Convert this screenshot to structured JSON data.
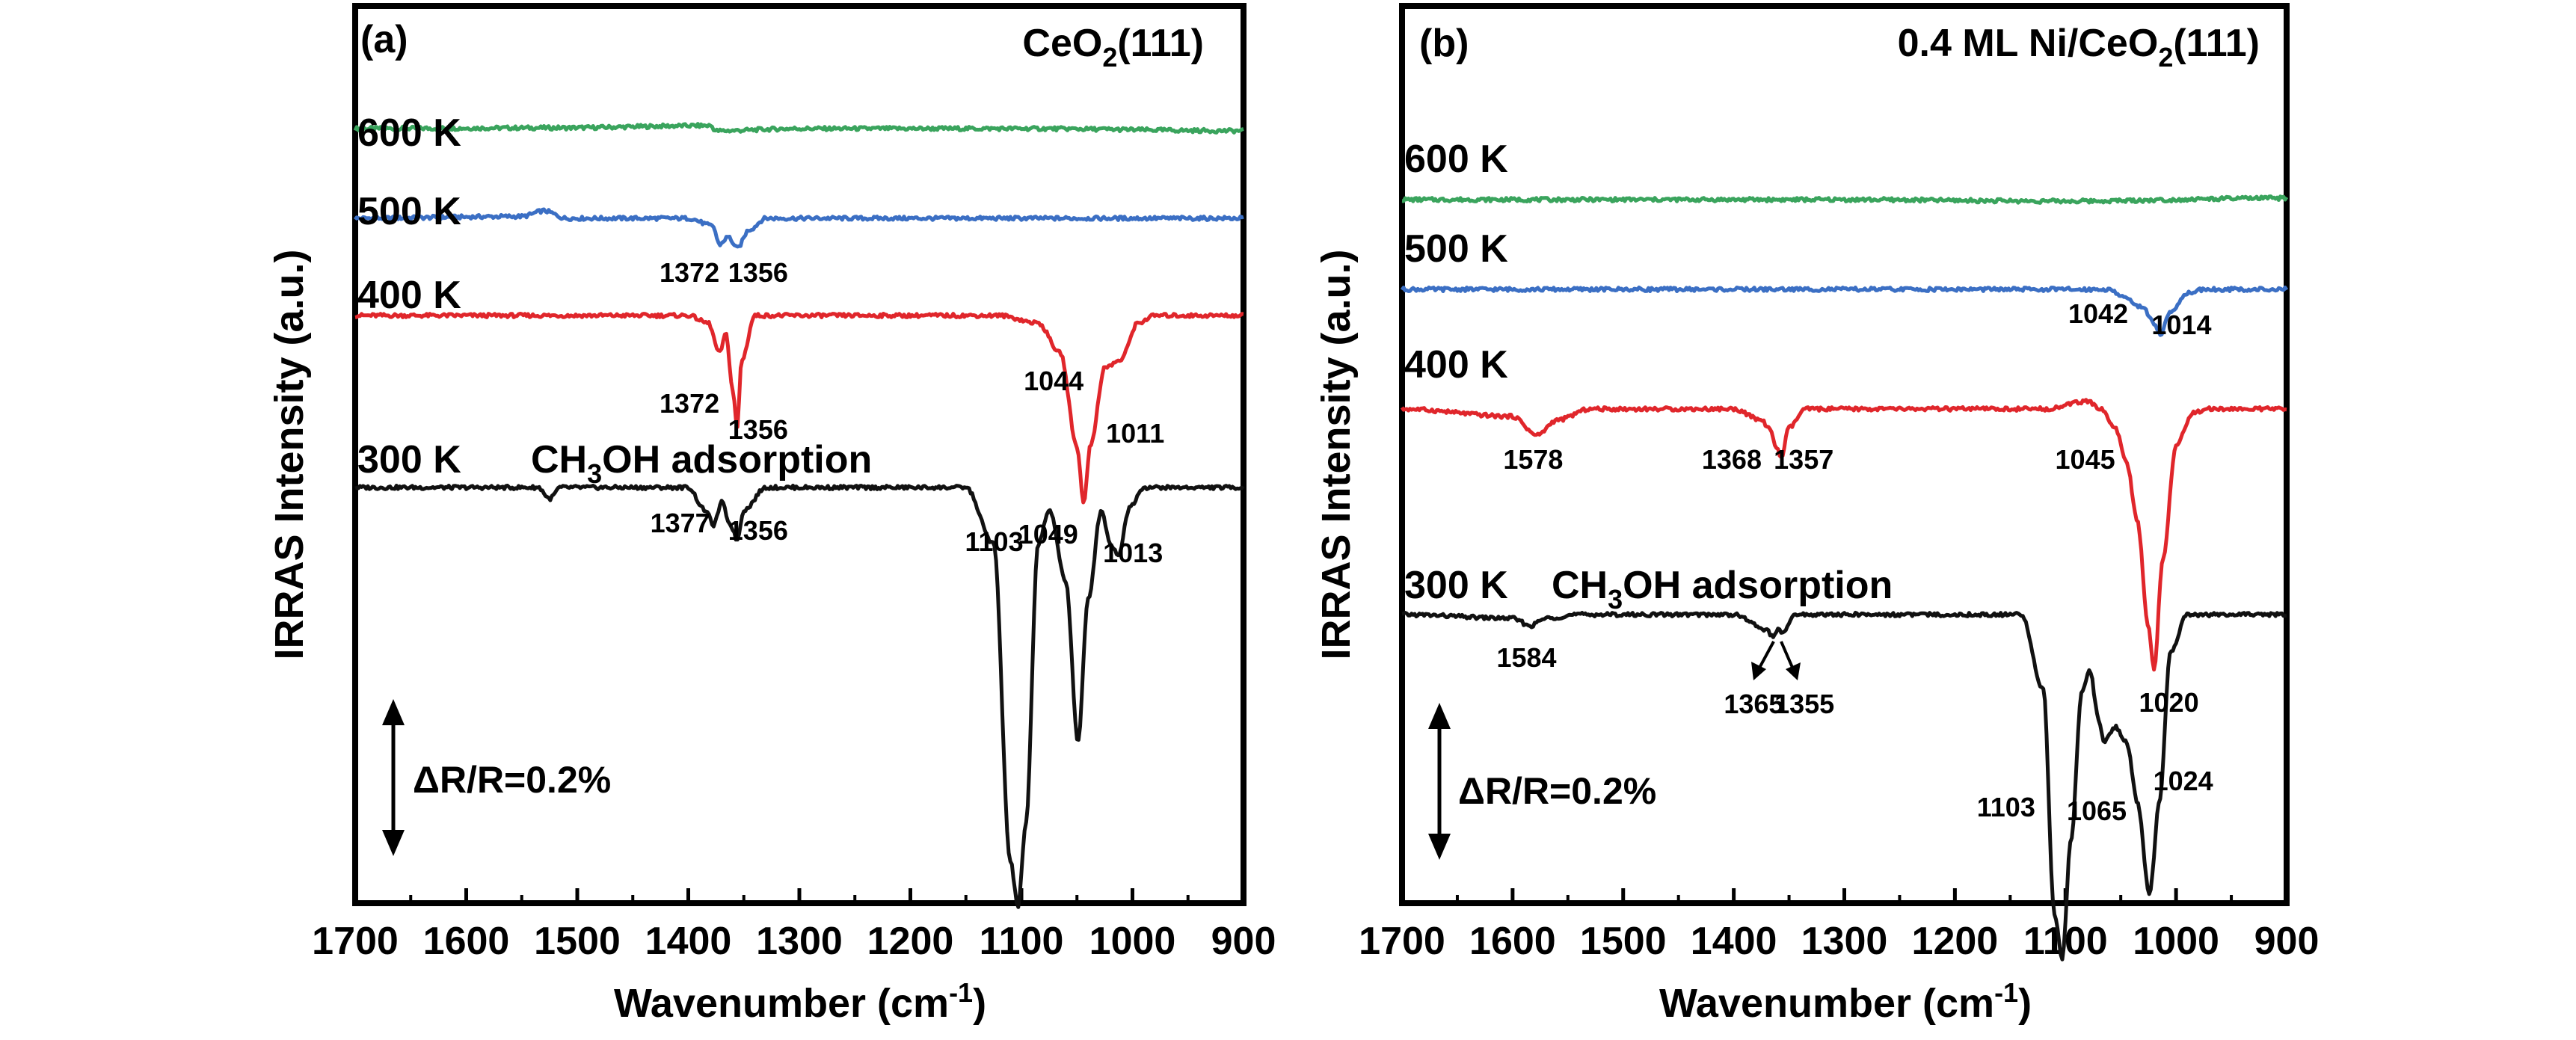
{
  "chart_data": [
    {
      "type": "line",
      "panel_label": "(a)",
      "title": "CeO2(111)",
      "title_parts": {
        "pre": "CeO",
        "sub": "2",
        "post": "(111)"
      },
      "xlabel": "Wavenumber (cm-1)",
      "xlabel_parts": {
        "pre": "Wavenumber (cm",
        "sup": "-1",
        "post": ")"
      },
      "ylabel": "IRRAS Intensity (a.u.)",
      "xlim": [
        1700,
        900
      ],
      "x_reversed": true,
      "xticks": [
        "1700",
        "1600",
        "1500",
        "1400",
        "1300",
        "1200",
        "1100",
        "1000",
        "900"
      ],
      "yticks": [],
      "scale_bar": "ΔR/R=0.2%",
      "scale_bar_value_percent": 0.2,
      "traces": [
        {
          "name": "600 K",
          "color": "#3aa45d",
          "offset": 0.96,
          "points": [
            [
              1700,
              0
            ],
            [
              1520,
              0.002
            ],
            [
              1380,
              0.008
            ],
            [
              1375,
              -0.006
            ],
            [
              1300,
              0
            ],
            [
              1100,
              0
            ],
            [
              900,
              -0.006
            ]
          ]
        },
        {
          "name": "500 K",
          "color": "#3b6fc4",
          "offset": 0.72,
          "points": [
            [
              1700,
              0
            ],
            [
              1550,
              0.005
            ],
            [
              1530,
              0.02
            ],
            [
              1510,
              0
            ],
            [
              1400,
              0
            ],
            [
              1378,
              -0.02
            ],
            [
              1372,
              -0.07
            ],
            [
              1364,
              -0.05
            ],
            [
              1356,
              -0.08
            ],
            [
              1345,
              -0.03
            ],
            [
              1330,
              0
            ],
            [
              1100,
              0
            ],
            [
              900,
              0
            ]
          ]
        },
        {
          "name": "400 K",
          "color": "#e0262b",
          "offset": 0.46,
          "points": [
            [
              1700,
              0
            ],
            [
              1400,
              0
            ],
            [
              1382,
              -0.02
            ],
            [
              1372,
              -0.1
            ],
            [
              1366,
              -0.05
            ],
            [
              1360,
              -0.2
            ],
            [
              1356,
              -0.3
            ],
            [
              1352,
              -0.12
            ],
            [
              1340,
              0
            ],
            [
              1120,
              0
            ],
            [
              1085,
              -0.02
            ],
            [
              1065,
              -0.1
            ],
            [
              1050,
              -0.35
            ],
            [
              1044,
              -0.5
            ],
            [
              1038,
              -0.35
            ],
            [
              1025,
              -0.14
            ],
            [
              1011,
              -0.12
            ],
            [
              995,
              -0.02
            ],
            [
              980,
              0
            ],
            [
              900,
              0
            ]
          ]
        },
        {
          "name": "300 K",
          "color": "#111111",
          "offset": 0,
          "points": [
            [
              1700,
              0
            ],
            [
              1535,
              0
            ],
            [
              1525,
              -0.03
            ],
            [
              1515,
              0
            ],
            [
              1400,
              0
            ],
            [
              1385,
              -0.06
            ],
            [
              1377,
              -0.1
            ],
            [
              1370,
              -0.04
            ],
            [
              1362,
              -0.1
            ],
            [
              1356,
              -0.14
            ],
            [
              1350,
              -0.06
            ],
            [
              1330,
              0
            ],
            [
              1150,
              0
            ],
            [
              1125,
              -0.15
            ],
            [
              1110,
              -1.0
            ],
            [
              1103,
              -1.12
            ],
            [
              1096,
              -0.9
            ],
            [
              1085,
              -0.15
            ],
            [
              1075,
              -0.06
            ],
            [
              1060,
              -0.25
            ],
            [
              1049,
              -0.68
            ],
            [
              1040,
              -0.3
            ],
            [
              1028,
              -0.06
            ],
            [
              1020,
              -0.15
            ],
            [
              1013,
              -0.18
            ],
            [
              1002,
              -0.05
            ],
            [
              990,
              0
            ],
            [
              900,
              0
            ]
          ]
        }
      ],
      "trace_label_300_extra": "CH3OH adsorption",
      "adsorption_parts": {
        "pre": "CH",
        "sub": "3",
        "post": "OH adsorption"
      },
      "peak_labels": [
        {
          "text": "1372",
          "x": 1372,
          "trace": "500 K"
        },
        {
          "text": "1356",
          "x": 1356,
          "trace": "500 K"
        },
        {
          "text": "1372",
          "x": 1372,
          "trace": "400 K"
        },
        {
          "text": "1356",
          "x": 1356,
          "trace": "400 K"
        },
        {
          "text": "1044",
          "x": 1044,
          "trace": "400 K"
        },
        {
          "text": "1011",
          "x": 1011,
          "trace": "400 K"
        },
        {
          "text": "1377",
          "x": 1377,
          "trace": "300 K"
        },
        {
          "text": "1356",
          "x": 1356,
          "trace": "300 K"
        },
        {
          "text": "1103",
          "x": 1103,
          "trace": "300 K"
        },
        {
          "text": "1049",
          "x": 1049,
          "trace": "300 K"
        },
        {
          "text": "1013",
          "x": 1013,
          "trace": "300 K"
        }
      ]
    },
    {
      "type": "line",
      "panel_label": "(b)",
      "title": "0.4 ML Ni/CeO2(111)",
      "title_parts": {
        "pre": "0.4 ML Ni/CeO",
        "sub": "2",
        "post": "(111)"
      },
      "xlabel": "Wavenumber (cm-1)",
      "xlabel_parts": {
        "pre": "Wavenumber (cm",
        "sup": "-1",
        "post": ")"
      },
      "ylabel": "IRRAS Intensity (a.u.)",
      "xlim": [
        1700,
        900
      ],
      "x_reversed": true,
      "xticks": [
        "1700",
        "1600",
        "1500",
        "1400",
        "1300",
        "1200",
        "1100",
        "1000",
        "900"
      ],
      "yticks": [],
      "scale_bar": "ΔR/R=0.2%",
      "scale_bar_value_percent": 0.2,
      "traces": [
        {
          "name": "600 K",
          "color": "#3aa45d",
          "offset": 1.11,
          "points": [
            [
              1700,
              0
            ],
            [
              1500,
              0
            ],
            [
              1300,
              0
            ],
            [
              1100,
              -0.004
            ],
            [
              900,
              0.004
            ]
          ]
        },
        {
          "name": "500 K",
          "color": "#3b6fc4",
          "offset": 0.87,
          "points": [
            [
              1700,
              0
            ],
            [
              1300,
              0
            ],
            [
              1060,
              0
            ],
            [
              1048,
              -0.02
            ],
            [
              1042,
              -0.03
            ],
            [
              1030,
              -0.05
            ],
            [
              1020,
              -0.09
            ],
            [
              1014,
              -0.12
            ],
            [
              1005,
              -0.06
            ],
            [
              990,
              -0.01
            ],
            [
              975,
              0
            ],
            [
              900,
              0
            ]
          ]
        },
        {
          "name": "400 K",
          "color": "#e0262b",
          "offset": 0.55,
          "points": [
            [
              1700,
              0
            ],
            [
              1600,
              -0.02
            ],
            [
              1578,
              -0.07
            ],
            [
              1560,
              -0.03
            ],
            [
              1530,
              0
            ],
            [
              1400,
              0
            ],
            [
              1375,
              -0.03
            ],
            [
              1368,
              -0.05
            ],
            [
              1362,
              -0.1
            ],
            [
              1357,
              -0.13
            ],
            [
              1350,
              -0.05
            ],
            [
              1335,
              0
            ],
            [
              1120,
              0
            ],
            [
              1080,
              0.02
            ],
            [
              1068,
              0
            ],
            [
              1055,
              -0.05
            ],
            [
              1045,
              -0.14
            ],
            [
              1035,
              -0.3
            ],
            [
              1025,
              -0.58
            ],
            [
              1020,
              -0.7
            ],
            [
              1012,
              -0.4
            ],
            [
              1000,
              -0.1
            ],
            [
              985,
              -0.01
            ],
            [
              970,
              0
            ],
            [
              900,
              0
            ]
          ]
        },
        {
          "name": "300 K",
          "color": "#111111",
          "offset": 0,
          "points": [
            [
              1700,
              0
            ],
            [
              1600,
              -0.01
            ],
            [
              1584,
              -0.03
            ],
            [
              1570,
              -0.01
            ],
            [
              1540,
              0
            ],
            [
              1400,
              0
            ],
            [
              1370,
              -0.04
            ],
            [
              1365,
              -0.06
            ],
            [
              1360,
              -0.04
            ],
            [
              1355,
              -0.05
            ],
            [
              1345,
              0
            ],
            [
              1140,
              0
            ],
            [
              1120,
              -0.2
            ],
            [
              1110,
              -0.8
            ],
            [
              1103,
              -0.92
            ],
            [
              1095,
              -0.6
            ],
            [
              1085,
              -0.2
            ],
            [
              1078,
              -0.15
            ],
            [
              1070,
              -0.28
            ],
            [
              1065,
              -0.34
            ],
            [
              1055,
              -0.3
            ],
            [
              1045,
              -0.34
            ],
            [
              1035,
              -0.5
            ],
            [
              1024,
              -0.75
            ],
            [
              1015,
              -0.5
            ],
            [
              1005,
              -0.1
            ],
            [
              990,
              0
            ],
            [
              900,
              0
            ]
          ]
        }
      ],
      "trace_label_300_extra": "CH3OH adsorption",
      "adsorption_parts": {
        "pre": "CH",
        "sub": "3",
        "post": "OH adsorption"
      },
      "peak_labels": [
        {
          "text": "1042",
          "x": 1042,
          "trace": "500 K"
        },
        {
          "text": "1014",
          "x": 1014,
          "trace": "500 K"
        },
        {
          "text": "1578",
          "x": 1578,
          "trace": "400 K"
        },
        {
          "text": "1368",
          "x": 1368,
          "trace": "400 K"
        },
        {
          "text": "1357",
          "x": 1357,
          "trace": "400 K"
        },
        {
          "text": "1045",
          "x": 1045,
          "trace": "400 K"
        },
        {
          "text": "1020",
          "x": 1020,
          "trace": "400 K"
        },
        {
          "text": "1584",
          "x": 1584,
          "trace": "300 K"
        },
        {
          "text": "1365",
          "x": 1365,
          "trace": "300 K"
        },
        {
          "text": "1355",
          "x": 1355,
          "trace": "300 K"
        },
        {
          "text": "1103",
          "x": 1103,
          "trace": "300 K"
        },
        {
          "text": "1065",
          "x": 1065,
          "trace": "300 K"
        },
        {
          "text": "1024",
          "x": 1024,
          "trace": "300 K"
        }
      ]
    }
  ]
}
